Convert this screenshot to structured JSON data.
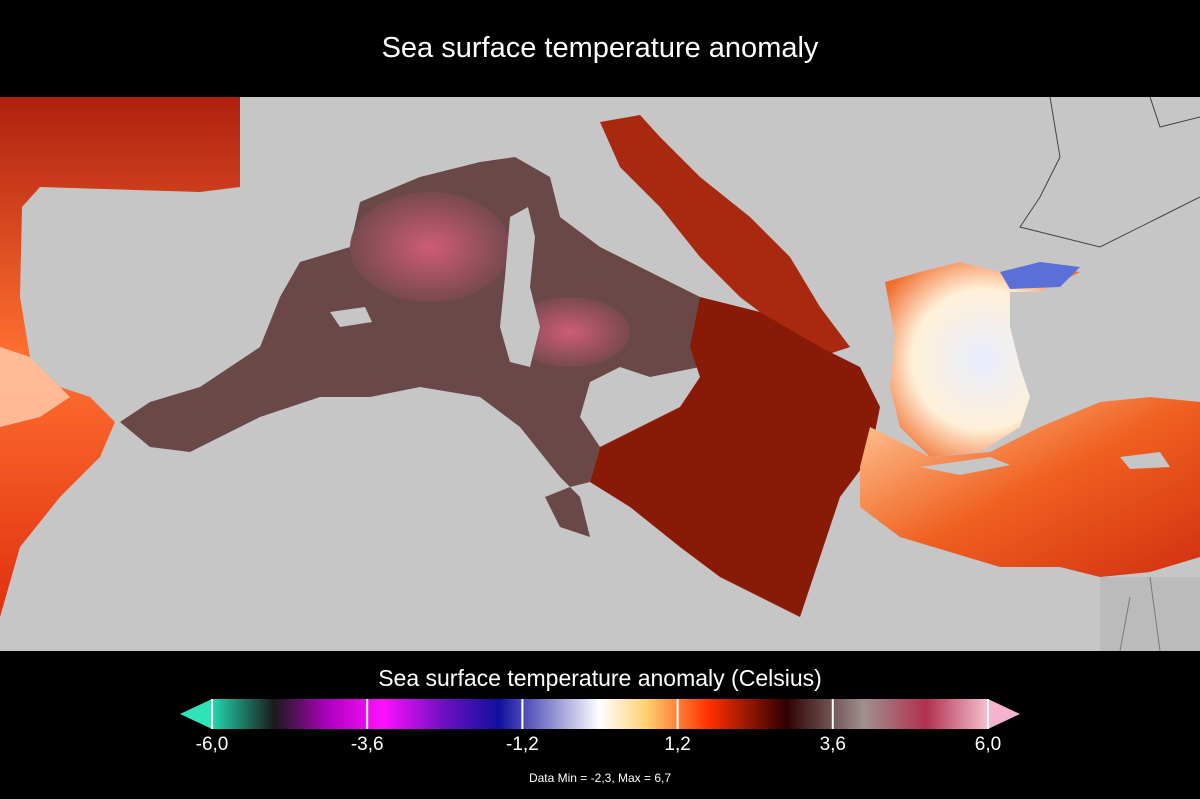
{
  "title": "Sea surface temperature anomaly",
  "legend": {
    "title": "Sea surface temperature anomaly (Celsius)",
    "min": -6.0,
    "max": 6.0,
    "ticks": [
      "-6,0",
      "-3,6",
      "-1,2",
      "1,2",
      "3,6",
      "6,0"
    ],
    "tick_values": [
      -6.0,
      -3.6,
      -1.2,
      1.2,
      3.6,
      6.0
    ],
    "stats": "Data Min = -2,3, Max = 6,7",
    "colors": {
      "underflow_arrow": "#2ee3b8",
      "overflow_arrow": "#f4b3cf",
      "stops": [
        "#22d8b0",
        "#1a1a1a",
        "#b000c0",
        "#ff10ff",
        "#6a10c0",
        "#1010a0",
        "#ffffff",
        "#ffd070",
        "#ff3000",
        "#300000",
        "#a09090",
        "#b03050",
        "#f8c0d0"
      ]
    }
  },
  "map": {
    "land_color": "#c6c6c6",
    "sea_colors": {
      "western_basin": "#6a4a4a",
      "tyrrhenian_warm": "#d05a7a",
      "eastern_basin": "#c03010",
      "aegean_cool": "#f0f4ff",
      "levantine": "#f06020",
      "atlantic": "#e04020"
    }
  }
}
